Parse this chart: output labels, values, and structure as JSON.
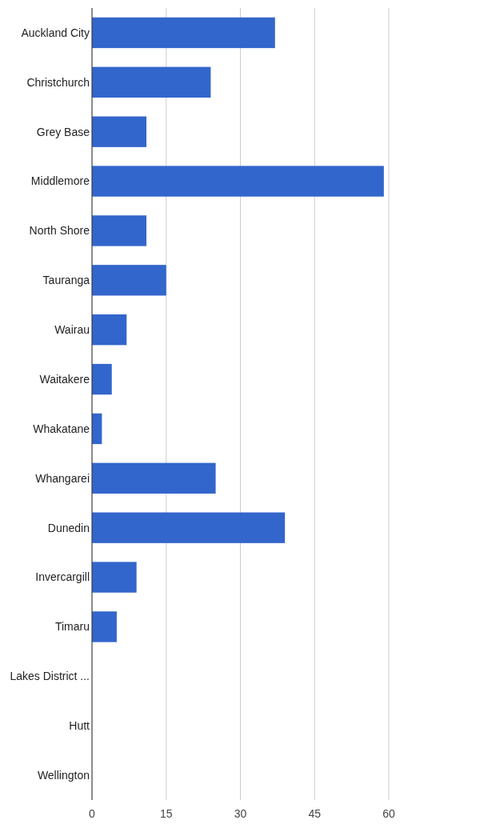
{
  "chart_data": {
    "type": "bar",
    "orientation": "horizontal",
    "categories": [
      "Auckland City",
      "Christchurch",
      "Grey Base",
      "Middlemore",
      "North Shore",
      "Tauranga",
      "Wairau",
      "Waitakere",
      "Whakatane",
      "Whangarei",
      "Dunedin",
      "Invercargill",
      "Timaru",
      "Lakes District ...",
      "Hutt",
      "Wellington"
    ],
    "values": [
      37,
      24,
      11,
      59,
      11,
      15,
      7,
      4,
      2,
      25,
      39,
      9,
      5,
      0,
      0,
      0
    ],
    "color": "#3366cc",
    "xlim": [
      0,
      60
    ],
    "xticks": [
      0,
      15,
      30,
      45,
      60
    ],
    "grid": "x"
  }
}
